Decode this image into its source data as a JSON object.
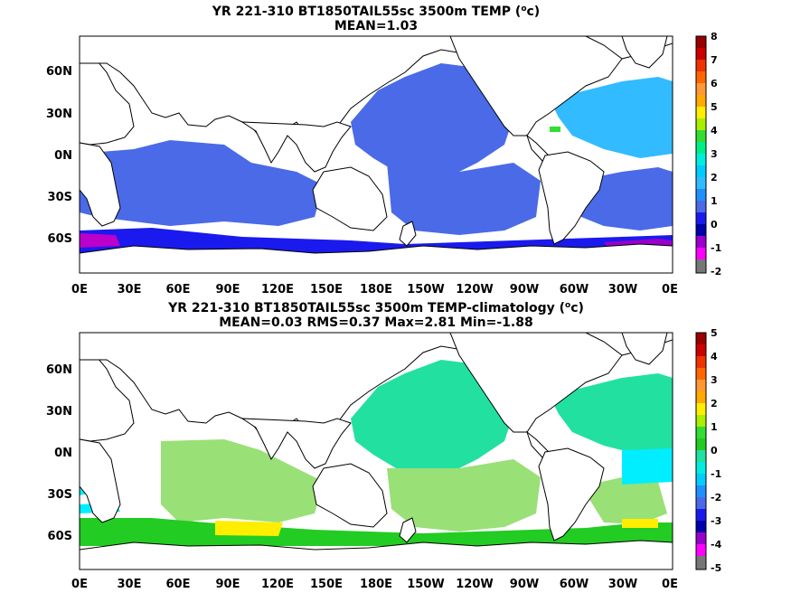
{
  "panels": [
    {
      "title": "YR 221-310 BT1850TAIL55sc 3500m TEMP (",
      "title_sup": "o",
      "title_end": "c)",
      "stats": "MEAN=1.03",
      "lat_labels": [
        "60N",
        "30N",
        "0N",
        "30S",
        "60S"
      ],
      "lon_labels": [
        "0E",
        "30E",
        "60E",
        "90E",
        "120E",
        "150E",
        "180E",
        "150W",
        "120W",
        "90W",
        "60W",
        "30W",
        "0E"
      ],
      "colorbar": {
        "labels": [
          "8",
          "7",
          "6",
          "5",
          "4",
          "3",
          "2",
          "1",
          "0",
          "-1",
          "-2"
        ],
        "colors": [
          "#ff00ff",
          "#9900cc",
          "#0000ee",
          "#3355ff",
          "#1e90ff",
          "#00ccff",
          "#00eedd",
          "#33dd33",
          "#ffee00",
          "#ff9933",
          "#ff6600",
          "#ee3300",
          "#cc0000",
          "#990000"
        ]
      }
    },
    {
      "title": "YR 221-310 BT1850TAIL55sc 3500m TEMP-climatology (",
      "title_sup": "o",
      "title_end": "c)",
      "stats": "MEAN=0.03   RMS=0.37   Max=2.81   Min=-1.88",
      "lat_labels": [
        "60N",
        "30N",
        "0N",
        "30S",
        "60S"
      ],
      "lon_labels": [
        "0E",
        "30E",
        "60E",
        "90E",
        "120E",
        "150E",
        "180E",
        "150W",
        "120W",
        "90W",
        "60W",
        "30W",
        "0E"
      ],
      "colorbar": {
        "labels": [
          "5",
          "4",
          "3",
          "2",
          "1",
          "0",
          "-1",
          "-2",
          "-3",
          "-4",
          "-5"
        ]
      }
    }
  ],
  "colors": {
    "land": "#ffffff",
    "coast": "#000000"
  }
}
